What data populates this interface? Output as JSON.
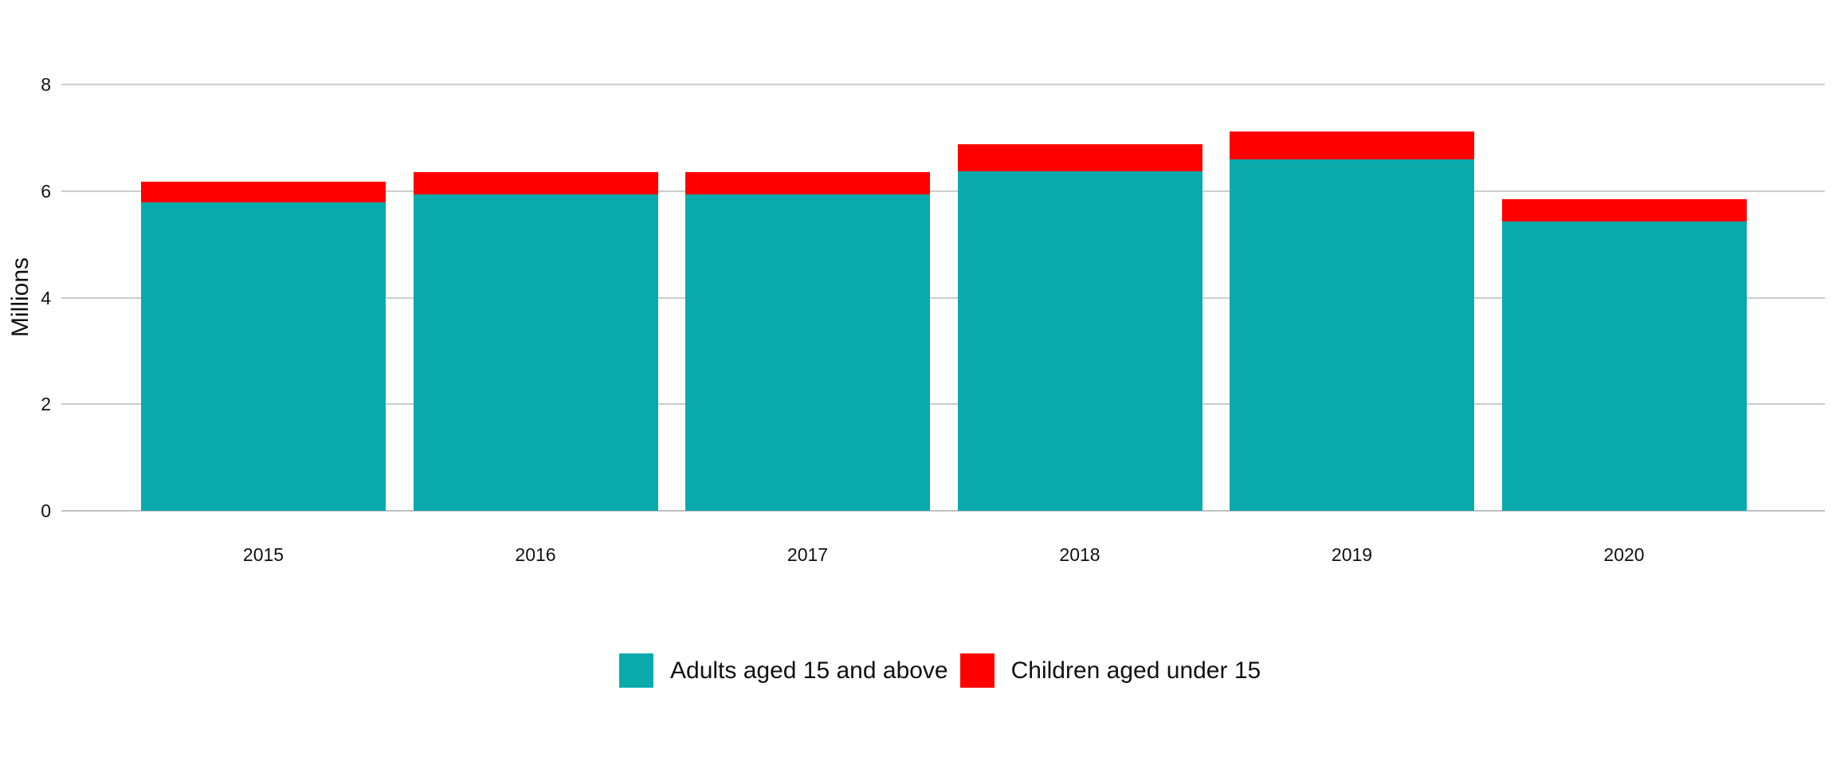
{
  "chart_data": {
    "type": "bar",
    "stacked": true,
    "categories": [
      "2015",
      "2016",
      "2017",
      "2018",
      "2019",
      "2020"
    ],
    "series": [
      {
        "name": "Adults aged 15 and above",
        "color": "#0AAAAC",
        "values": [
          5.79,
          5.94,
          5.93,
          6.37,
          6.6,
          5.43
        ]
      },
      {
        "name": "Children aged under 15",
        "color": "#FF0000",
        "values": [
          0.38,
          0.42,
          0.43,
          0.51,
          0.52,
          0.41
        ]
      }
    ],
    "title": "",
    "xlabel": "",
    "ylabel": "Millions",
    "ylim": [
      0,
      8
    ],
    "yticks": [
      0,
      2,
      4,
      6,
      8
    ],
    "grid": true,
    "legend_position": "bottom"
  },
  "colors": {
    "background": "#ffffff",
    "gridline": "#cccccc",
    "axis_line": "#c0c0c0",
    "text": "#111111"
  }
}
